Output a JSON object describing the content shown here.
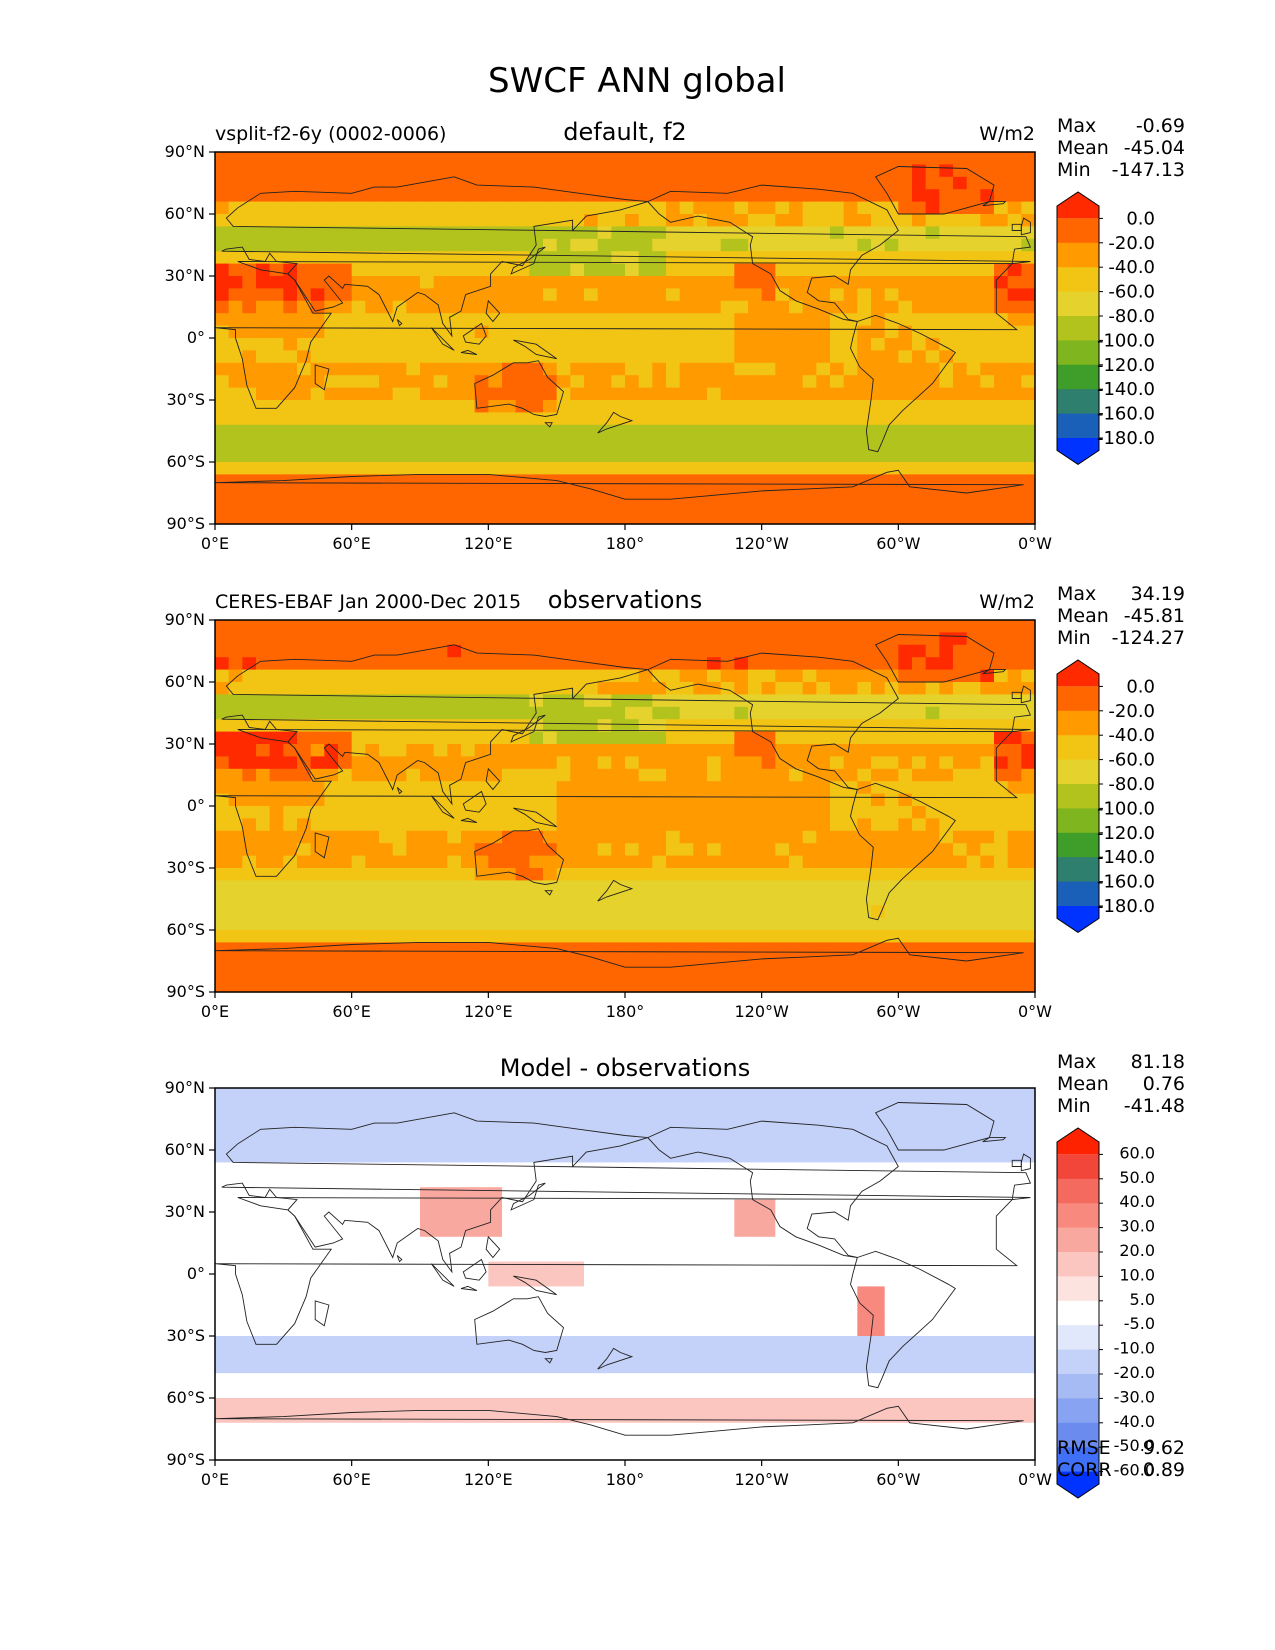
{
  "figure": {
    "title": "SWCF ANN global"
  },
  "chart_data": [
    {
      "type": "heatmap",
      "left_title": "vsplit-f2-6y (0002-0006)",
      "center_title": "default, f2",
      "right_title": "W/m2",
      "stats": [
        {
          "label": "Max",
          "value": "-0.69"
        },
        {
          "label": "Mean",
          "value": "-45.04"
        },
        {
          "label": "Min",
          "value": "-147.13"
        }
      ],
      "colorbar": {
        "levels": [
          "0.0",
          "-20.0",
          "-40.0",
          "-60.0",
          "-80.0",
          "-100.0",
          "-120.0",
          "-140.0",
          "-160.0",
          "-180.0"
        ],
        "colors": [
          "#ff2a00",
          "#ff6600",
          "#ff9a00",
          "#f2c414",
          "#e6d22c",
          "#b3c31e",
          "#7fb51e",
          "#3f9e2a",
          "#2e7f6e",
          "#1a5fb8",
          "#0033ff"
        ]
      },
      "x_ticks": [
        "0°E",
        "60°E",
        "120°E",
        "180°",
        "120°W",
        "60°W",
        "0°W"
      ],
      "y_ticks": [
        "90°N",
        "60°N",
        "30°N",
        "0°",
        "30°S",
        "60°S",
        "90°S"
      ],
      "xlim": [
        0,
        360
      ],
      "ylim": [
        -90,
        90
      ],
      "field": "model"
    },
    {
      "type": "heatmap",
      "left_title": "CERES-EBAF Jan 2000-Dec 2015",
      "center_title": "observations",
      "right_title": "W/m2",
      "stats": [
        {
          "label": "Max",
          "value": "34.19"
        },
        {
          "label": "Mean",
          "value": "-45.81"
        },
        {
          "label": "Min",
          "value": "-124.27"
        }
      ],
      "colorbar": {
        "levels": [
          "0.0",
          "-20.0",
          "-40.0",
          "-60.0",
          "-80.0",
          "-100.0",
          "-120.0",
          "-140.0",
          "-160.0",
          "-180.0"
        ],
        "colors": [
          "#ff2a00",
          "#ff6600",
          "#ff9a00",
          "#f2c414",
          "#e6d22c",
          "#b3c31e",
          "#7fb51e",
          "#3f9e2a",
          "#2e7f6e",
          "#1a5fb8",
          "#0033ff"
        ]
      },
      "x_ticks": [
        "0°E",
        "60°E",
        "120°E",
        "180°",
        "120°W",
        "60°W",
        "0°W"
      ],
      "y_ticks": [
        "90°N",
        "60°N",
        "30°N",
        "0°",
        "30°S",
        "60°S",
        "90°S"
      ],
      "xlim": [
        0,
        360
      ],
      "ylim": [
        -90,
        90
      ],
      "field": "obs"
    },
    {
      "type": "heatmap",
      "left_title": "",
      "center_title": "Model - observations",
      "right_title": "",
      "stats": [
        {
          "label": "Max",
          "value": "81.18"
        },
        {
          "label": "Mean",
          "value": "0.76"
        },
        {
          "label": "Min",
          "value": "-41.48"
        }
      ],
      "extra_stats": [
        {
          "label": "RMSE",
          "value": "9.62"
        },
        {
          "label": "CORR",
          "value": "0.89"
        }
      ],
      "colorbar": {
        "levels": [
          "60.0",
          "50.0",
          "40.0",
          "30.0",
          "20.0",
          "10.0",
          "5.0",
          "-5.0",
          "-10.0",
          "-20.0",
          "-30.0",
          "-40.0",
          "-50.0",
          "-60.0"
        ],
        "colors": [
          "#ff2200",
          "#f2463a",
          "#f46a5e",
          "#f7897f",
          "#f9a89f",
          "#fbc6bf",
          "#fde3df",
          "#ffffff",
          "#e1e8fb",
          "#c4d1f8",
          "#a6baf4",
          "#88a3f1",
          "#6b8cee",
          "#4070f7",
          "#0033ff"
        ]
      },
      "x_ticks": [
        "0°E",
        "60°E",
        "120°E",
        "180°",
        "120°W",
        "60°W",
        "0°W"
      ],
      "y_ticks": [
        "90°N",
        "60°N",
        "30°N",
        "0°",
        "30°S",
        "60°S",
        "90°S"
      ],
      "xlim": [
        0,
        360
      ],
      "ylim": [
        -90,
        90
      ],
      "field": "diff"
    }
  ]
}
